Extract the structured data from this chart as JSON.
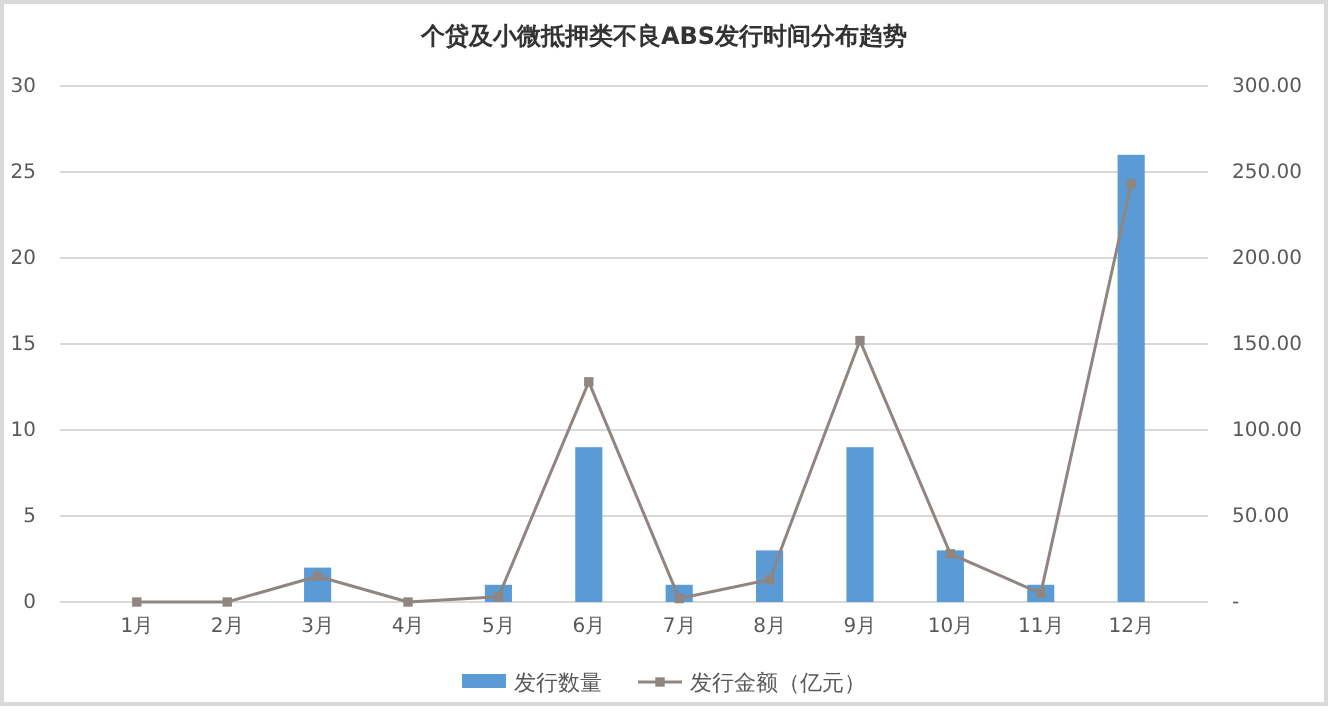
{
  "chart_data": {
    "type": "bar",
    "title": "个贷及小微抵押类不良ABS发行时间分布趋势",
    "categories": [
      "1月",
      "2月",
      "3月",
      "4月",
      "5月",
      "6月",
      "7月",
      "8月",
      "9月",
      "10月",
      "11月",
      "12月"
    ],
    "series": [
      {
        "name": "发行数量",
        "type": "bar",
        "color": "#5b9bd5",
        "values": [
          null,
          null,
          2,
          null,
          1,
          9,
          1,
          3,
          9,
          3,
          1,
          26
        ]
      },
      {
        "name": "发行金额（亿元）",
        "type": "line",
        "axis": "y2",
        "color": "#8f8581",
        "marker": "square",
        "values": [
          0,
          0,
          15,
          0,
          3,
          128,
          2,
          13,
          152,
          28,
          5,
          243
        ]
      }
    ],
    "ylim": [
      0,
      30
    ],
    "yticks": [
      0,
      5,
      10,
      15,
      20,
      25,
      30
    ],
    "y2lim": [
      0,
      300
    ],
    "y2ticks": [
      {
        "value": 0,
        "label": "-"
      },
      {
        "value": 50,
        "label": "50.00"
      },
      {
        "value": 100,
        "label": "100.00"
      },
      {
        "value": 150,
        "label": "150.00"
      },
      {
        "value": 200,
        "label": "200.00"
      },
      {
        "value": 250,
        "label": "250.00"
      },
      {
        "value": 300,
        "label": "300.00"
      }
    ],
    "grid": "y",
    "legend": "bottom"
  }
}
